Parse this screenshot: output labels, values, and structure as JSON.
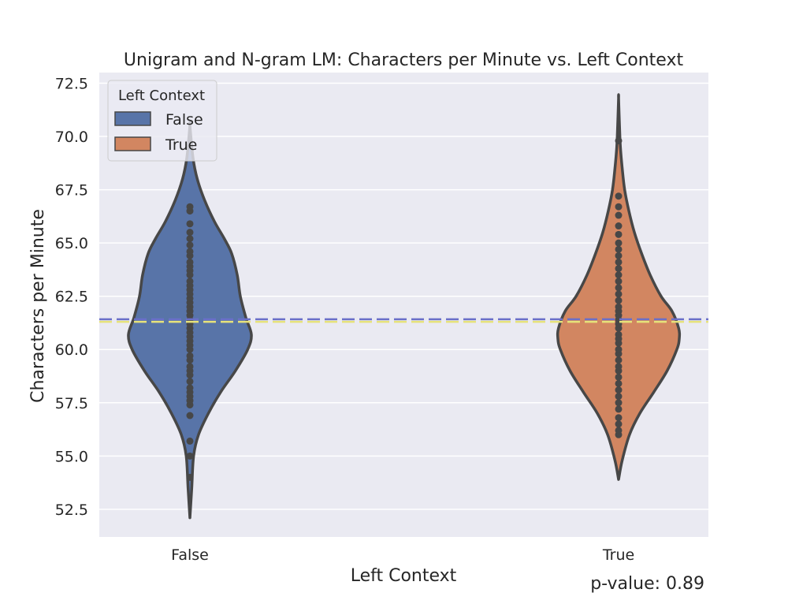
{
  "chart_data": {
    "type": "violin",
    "title": "Unigram and N-gram LM: Characters per Minute vs. Left Context",
    "xlabel": "Left Context",
    "ylabel": "Characters per Minute",
    "categories": [
      "False",
      "True"
    ],
    "ylim": [
      51.2,
      73.0
    ],
    "yticks": [
      "52.5",
      "55.0",
      "57.5",
      "60.0",
      "62.5",
      "65.0",
      "67.5",
      "70.0",
      "72.5"
    ],
    "grid": true,
    "legend": {
      "title": "Left Context",
      "placement": "upper-left",
      "entries": [
        "False",
        "True"
      ]
    },
    "colors": {
      "False": "#5874a8",
      "True": "#d28661",
      "background": "#eaeaf2",
      "outline": "#474747"
    },
    "series": [
      {
        "name": "False",
        "range": [
          52.1,
          70.5
        ],
        "density_y": [
          52.1,
          53.5,
          55.0,
          56.0,
          57.0,
          58.0,
          59.0,
          60.0,
          60.7,
          61.5,
          62.5,
          63.5,
          64.5,
          65.2,
          66.0,
          67.0,
          68.0,
          69.0,
          70.5
        ],
        "density_w": [
          0.0,
          0.03,
          0.06,
          0.14,
          0.3,
          0.5,
          0.74,
          0.94,
          1.0,
          0.91,
          0.82,
          0.77,
          0.68,
          0.56,
          0.4,
          0.24,
          0.12,
          0.05,
          0.0
        ],
        "points": [
          54.0,
          55.0,
          55.7,
          56.9,
          57.4,
          57.6,
          57.8,
          58.0,
          58.2,
          58.5,
          58.8,
          59.0,
          59.2,
          59.5,
          59.7,
          60.0,
          60.2,
          60.4,
          60.6,
          60.8,
          61.0,
          61.2,
          61.4,
          61.6,
          61.8,
          62.0,
          62.2,
          62.4,
          62.6,
          62.8,
          63.0,
          63.2,
          63.5,
          63.7,
          63.9,
          64.1,
          64.4,
          64.6,
          64.9,
          65.2,
          65.5,
          65.9,
          66.5,
          66.7
        ],
        "mean": 61.3
      },
      {
        "name": "True",
        "range": [
          53.9,
          71.8
        ],
        "density_y": [
          53.9,
          54.8,
          56.0,
          57.0,
          58.0,
          59.0,
          60.0,
          60.5,
          61.0,
          61.8,
          62.5,
          63.5,
          64.5,
          65.5,
          66.5,
          67.5,
          68.5,
          69.5,
          70.5,
          71.8
        ],
        "density_w": [
          0.0,
          0.06,
          0.18,
          0.35,
          0.58,
          0.8,
          0.96,
          1.0,
          0.99,
          0.88,
          0.7,
          0.52,
          0.38,
          0.26,
          0.17,
          0.1,
          0.06,
          0.03,
          0.015,
          0.0
        ],
        "points": [
          56.0,
          56.2,
          56.5,
          56.8,
          57.2,
          57.5,
          57.8,
          58.1,
          58.4,
          58.7,
          59.0,
          59.2,
          59.5,
          59.8,
          60.0,
          60.3,
          60.5,
          60.7,
          61.0,
          61.2,
          61.4,
          61.6,
          61.8,
          62.0,
          62.3,
          62.6,
          62.9,
          63.2,
          63.5,
          63.8,
          64.1,
          64.4,
          64.7,
          65.0,
          65.4,
          65.8,
          66.3,
          66.7,
          67.2,
          69.8
        ],
        "mean": 61.35
      }
    ],
    "reference_lines": [
      {
        "value": 61.42,
        "color": "#6a6fc8",
        "style": "dashed"
      },
      {
        "value": 61.3,
        "color": "#e6e27a",
        "style": "dashed"
      }
    ]
  },
  "annotation": {
    "pvalue": "p-value: 0.89"
  }
}
